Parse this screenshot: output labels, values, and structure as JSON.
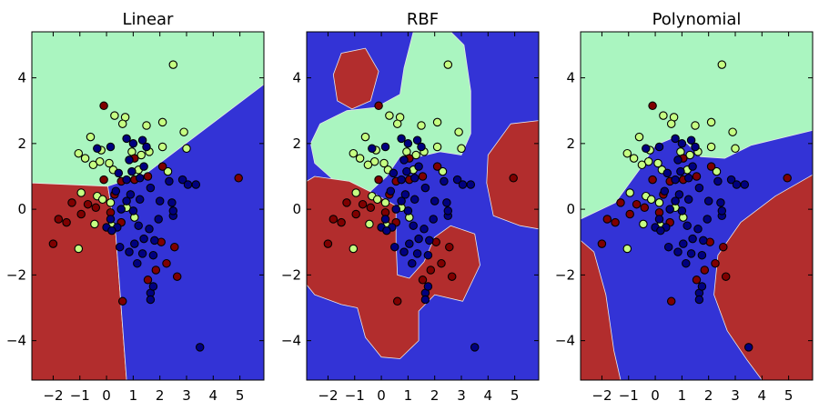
{
  "colors": {
    "class0": "#b22d2d",
    "class1": "#3333d6",
    "class2": "#aaf5c0",
    "pt0": "#7f0000",
    "pt1": "#00007f",
    "pt2": "#c6ff82",
    "boundary": "#e8e8e8"
  },
  "chart_data": [
    {
      "type": "scatter",
      "title": "Linear",
      "xlim": [
        -2.8,
        5.9
      ],
      "ylim": [
        -5.2,
        5.4
      ],
      "xticks": [
        -2,
        -1,
        0,
        1,
        2,
        3,
        4,
        5
      ],
      "yticks": [
        -4,
        -2,
        0,
        2,
        4
      ],
      "grid": false,
      "background": "class2",
      "regions": [
        {
          "class": "class0",
          "polygon": [
            [
              -2.8,
              0.8
            ],
            [
              0.05,
              0.7
            ],
            [
              0.35,
              -0.8
            ],
            [
              0.75,
              -5.2
            ],
            [
              -2.8,
              -5.2
            ]
          ]
        },
        {
          "class": "class1",
          "polygon": [
            [
              0.05,
              0.7
            ],
            [
              1.5,
              1.1
            ],
            [
              5.9,
              3.8
            ],
            [
              5.9,
              -5.2
            ],
            [
              0.75,
              -5.2
            ],
            [
              0.35,
              -0.8
            ]
          ]
        }
      ]
    },
    {
      "type": "scatter",
      "title": "RBF",
      "xlim": [
        -2.8,
        5.9
      ],
      "ylim": [
        -5.2,
        5.4
      ],
      "xticks": [
        -2,
        -1,
        0,
        1,
        2,
        3,
        4,
        5
      ],
      "yticks": [
        -4,
        -2,
        0,
        2,
        4
      ],
      "grid": false,
      "background": "class1",
      "regions": [
        {
          "class": "class2",
          "polygon": [
            [
              -0.2,
              3.1
            ],
            [
              -1.3,
              3.0
            ],
            [
              -2.3,
              2.6
            ],
            [
              -2.65,
              2.0
            ],
            [
              -2.5,
              1.4
            ],
            [
              -1.6,
              0.75
            ],
            [
              -0.4,
              0.55
            ],
            [
              0.2,
              1.0
            ],
            [
              0.7,
              1.6
            ],
            [
              1.4,
              1.6
            ],
            [
              2.2,
              1.75
            ],
            [
              3.0,
              1.65
            ],
            [
              3.35,
              2.3
            ],
            [
              3.35,
              3.6
            ],
            [
              3.1,
              5.0
            ],
            [
              2.6,
              5.4
            ],
            [
              1.2,
              5.4
            ],
            [
              0.85,
              4.3
            ],
            [
              0.7,
              3.5
            ]
          ]
        },
        {
          "class": "class0",
          "polygon": [
            [
              -1.8,
              4.1
            ],
            [
              -1.5,
              4.75
            ],
            [
              -0.6,
              4.9
            ],
            [
              -0.1,
              4.2
            ],
            [
              -0.4,
              3.3
            ],
            [
              -1.1,
              3.05
            ],
            [
              -1.65,
              3.3
            ]
          ]
        },
        {
          "class": "class0",
          "polygon": [
            [
              4.0,
              1.65
            ],
            [
              4.85,
              2.6
            ],
            [
              5.9,
              2.7
            ],
            [
              5.9,
              -0.6
            ],
            [
              5.2,
              -0.5
            ],
            [
              4.2,
              -0.2
            ],
            [
              3.95,
              0.8
            ]
          ]
        },
        {
          "class": "class0",
          "polygon": [
            [
              -2.8,
              0.85
            ],
            [
              -2.5,
              1.0
            ],
            [
              -1.2,
              0.85
            ],
            [
              -0.2,
              0.45
            ],
            [
              0.55,
              0.1
            ],
            [
              0.55,
              -1.0
            ],
            [
              0.6,
              -2.0
            ],
            [
              1.05,
              -2.1
            ],
            [
              1.6,
              -1.6
            ],
            [
              2.0,
              -0.85
            ],
            [
              2.6,
              -0.5
            ],
            [
              3.5,
              -0.75
            ],
            [
              3.7,
              -1.7
            ],
            [
              3.05,
              -2.8
            ],
            [
              2.0,
              -2.6
            ],
            [
              1.4,
              -3.1
            ],
            [
              1.4,
              -4.0
            ],
            [
              0.7,
              -4.55
            ],
            [
              0.0,
              -4.5
            ],
            [
              -0.6,
              -3.9
            ],
            [
              -0.9,
              -3.0
            ],
            [
              -1.5,
              -2.9
            ],
            [
              -2.5,
              -2.6
            ],
            [
              -2.8,
              -2.3
            ]
          ]
        }
      ]
    },
    {
      "type": "scatter",
      "title": "Polynomial",
      "xlim": [
        -2.8,
        5.9
      ],
      "ylim": [
        -5.2,
        5.4
      ],
      "xticks": [
        -2,
        -1,
        0,
        1,
        2,
        3,
        4,
        5
      ],
      "yticks": [
        -4,
        -2,
        0,
        2,
        4
      ],
      "grid": false,
      "background": "class1",
      "regions": [
        {
          "class": "class2",
          "polygon": [
            [
              -2.8,
              -0.3
            ],
            [
              -1.5,
              0.2
            ],
            [
              -0.6,
              1.2
            ],
            [
              0.0,
              1.95
            ],
            [
              0.6,
              2.15
            ],
            [
              1.2,
              2.0
            ],
            [
              1.7,
              1.6
            ],
            [
              2.6,
              1.55
            ],
            [
              3.6,
              1.95
            ],
            [
              5.9,
              2.4
            ],
            [
              5.9,
              5.4
            ],
            [
              -2.8,
              5.4
            ]
          ]
        },
        {
          "class": "class0",
          "polygon": [
            [
              -2.8,
              -0.95
            ],
            [
              -2.3,
              -1.3
            ],
            [
              -1.85,
              -2.6
            ],
            [
              -1.55,
              -4.3
            ],
            [
              -1.3,
              -5.2
            ],
            [
              -2.8,
              -5.2
            ]
          ]
        },
        {
          "class": "class0",
          "polygon": [
            [
              5.9,
              1.05
            ],
            [
              4.5,
              0.4
            ],
            [
              3.2,
              -0.4
            ],
            [
              2.35,
              -1.4
            ],
            [
              2.2,
              -2.6
            ],
            [
              2.7,
              -3.7
            ],
            [
              3.45,
              -4.6
            ],
            [
              4.0,
              -5.2
            ],
            [
              5.9,
              -5.2
            ]
          ]
        }
      ]
    }
  ],
  "points": [
    {
      "x": 2.5,
      "y": 4.4,
      "c": 2
    },
    {
      "x": 0.3,
      "y": 2.85,
      "c": 2
    },
    {
      "x": 0.7,
      "y": 2.8,
      "c": 2
    },
    {
      "x": 0.6,
      "y": 2.6,
      "c": 2
    },
    {
      "x": 1.5,
      "y": 2.55,
      "c": 2
    },
    {
      "x": 2.1,
      "y": 2.65,
      "c": 2
    },
    {
      "x": 2.9,
      "y": 2.35,
      "c": 2
    },
    {
      "x": -0.6,
      "y": 2.2,
      "c": 2
    },
    {
      "x": 3.0,
      "y": 1.85,
      "c": 2
    },
    {
      "x": 2.1,
      "y": 1.9,
      "c": 2
    },
    {
      "x": -0.2,
      "y": 1.8,
      "c": 2
    },
    {
      "x": 1.6,
      "y": 1.75,
      "c": 2
    },
    {
      "x": 0.95,
      "y": 1.75,
      "c": 2
    },
    {
      "x": -1.05,
      "y": 1.7,
      "c": 2
    },
    {
      "x": -0.8,
      "y": 1.55,
      "c": 2
    },
    {
      "x": 1.3,
      "y": 1.65,
      "c": 2
    },
    {
      "x": -0.25,
      "y": 1.45,
      "c": 2
    },
    {
      "x": 0.1,
      "y": 1.4,
      "c": 2
    },
    {
      "x": -0.5,
      "y": 1.35,
      "c": 2
    },
    {
      "x": 0.25,
      "y": 1.2,
      "c": 2
    },
    {
      "x": 2.3,
      "y": 1.15,
      "c": 2
    },
    {
      "x": 1.2,
      "y": 1.2,
      "c": 2
    },
    {
      "x": -0.95,
      "y": 0.5,
      "c": 2
    },
    {
      "x": -0.35,
      "y": 0.4,
      "c": 2
    },
    {
      "x": -0.15,
      "y": 0.3,
      "c": 2
    },
    {
      "x": 0.15,
      "y": 0.2,
      "c": 2
    },
    {
      "x": 0.75,
      "y": 0.05,
      "c": 2
    },
    {
      "x": 1.05,
      "y": -0.25,
      "c": 2
    },
    {
      "x": -0.45,
      "y": -0.45,
      "c": 2
    },
    {
      "x": 0.2,
      "y": -0.5,
      "c": 2
    },
    {
      "x": -1.05,
      "y": -1.2,
      "c": 2
    },
    {
      "x": -0.1,
      "y": 3.15,
      "c": 0
    },
    {
      "x": 1.05,
      "y": 1.55,
      "c": 0
    },
    {
      "x": 2.1,
      "y": 1.3,
      "c": 0
    },
    {
      "x": 1.55,
      "y": 1.0,
      "c": 0
    },
    {
      "x": 0.55,
      "y": 0.85,
      "c": 0
    },
    {
      "x": 1.05,
      "y": 0.9,
      "c": 0
    },
    {
      "x": -0.1,
      "y": 0.9,
      "c": 0
    },
    {
      "x": -1.3,
      "y": 0.2,
      "c": 0
    },
    {
      "x": -0.7,
      "y": 0.15,
      "c": 0
    },
    {
      "x": -0.4,
      "y": 0.05,
      "c": 0
    },
    {
      "x": 0.3,
      "y": 0.45,
      "c": 0
    },
    {
      "x": 4.95,
      "y": 0.95,
      "c": 0
    },
    {
      "x": -1.8,
      "y": -0.3,
      "c": 0
    },
    {
      "x": -1.5,
      "y": -0.4,
      "c": 0
    },
    {
      "x": -0.95,
      "y": -0.15,
      "c": 0
    },
    {
      "x": 0.15,
      "y": -0.1,
      "c": 0
    },
    {
      "x": 0.55,
      "y": -0.4,
      "c": 0
    },
    {
      "x": -2.0,
      "y": -1.05,
      "c": 0
    },
    {
      "x": 2.05,
      "y": -1.0,
      "c": 0
    },
    {
      "x": 2.55,
      "y": -1.15,
      "c": 0
    },
    {
      "x": 2.25,
      "y": -1.65,
      "c": 0
    },
    {
      "x": 1.85,
      "y": -1.85,
      "c": 0
    },
    {
      "x": 2.65,
      "y": -2.05,
      "c": 0
    },
    {
      "x": 1.55,
      "y": -2.15,
      "c": 0
    },
    {
      "x": 0.6,
      "y": -2.8,
      "c": 0
    },
    {
      "x": 0.75,
      "y": 2.15,
      "c": 1
    },
    {
      "x": 1.35,
      "y": 2.1,
      "c": 1
    },
    {
      "x": 0.15,
      "y": 1.9,
      "c": 1
    },
    {
      "x": -0.35,
      "y": 1.85,
      "c": 1
    },
    {
      "x": 1.5,
      "y": 1.9,
      "c": 1
    },
    {
      "x": 0.85,
      "y": 1.5,
      "c": 1
    },
    {
      "x": 1.4,
      "y": 1.3,
      "c": 1
    },
    {
      "x": 0.45,
      "y": 1.1,
      "c": 1
    },
    {
      "x": 0.95,
      "y": 1.15,
      "c": 1
    },
    {
      "x": 0.75,
      "y": 0.9,
      "c": 1
    },
    {
      "x": 1.25,
      "y": 0.95,
      "c": 1
    },
    {
      "x": 1.65,
      "y": 0.65,
      "c": 1
    },
    {
      "x": 2.35,
      "y": 0.85,
      "c": 1
    },
    {
      "x": 2.85,
      "y": 0.9,
      "c": 1
    },
    {
      "x": 3.05,
      "y": 0.75,
      "c": 1
    },
    {
      "x": 3.35,
      "y": 0.75,
      "c": 1
    },
    {
      "x": 0.35,
      "y": 0.55,
      "c": 1
    },
    {
      "x": 0.9,
      "y": 0.45,
      "c": 1
    },
    {
      "x": 0.75,
      "y": 0.25,
      "c": 1
    },
    {
      "x": 1.25,
      "y": 0.3,
      "c": 1
    },
    {
      "x": 2.0,
      "y": 0.25,
      "c": 1
    },
    {
      "x": 2.45,
      "y": 0.2,
      "c": 1
    },
    {
      "x": 0.55,
      "y": 0.0,
      "c": 1
    },
    {
      "x": 1.0,
      "y": -0.05,
      "c": 1
    },
    {
      "x": 1.95,
      "y": -0.3,
      "c": 1
    },
    {
      "x": 0.15,
      "y": -0.3,
      "c": 1
    },
    {
      "x": 2.5,
      "y": -0.2,
      "c": 1
    },
    {
      "x": 0.4,
      "y": -0.55,
      "c": 1
    },
    {
      "x": 1.2,
      "y": -0.5,
      "c": 1
    },
    {
      "x": 1.6,
      "y": -0.6,
      "c": 1
    },
    {
      "x": 0.0,
      "y": -0.55,
      "c": 1
    },
    {
      "x": 0.2,
      "y": -0.65,
      "c": 1
    },
    {
      "x": 1.4,
      "y": -0.9,
      "c": 1
    },
    {
      "x": 1.05,
      "y": -1.05,
      "c": 1
    },
    {
      "x": 1.8,
      "y": -0.95,
      "c": 1
    },
    {
      "x": 0.5,
      "y": -1.15,
      "c": 1
    },
    {
      "x": 0.85,
      "y": -1.3,
      "c": 1
    },
    {
      "x": 1.35,
      "y": -1.35,
      "c": 1
    },
    {
      "x": 1.75,
      "y": -1.4,
      "c": 1
    },
    {
      "x": 1.15,
      "y": -1.65,
      "c": 1
    },
    {
      "x": 1.65,
      "y": -2.55,
      "c": 1
    },
    {
      "x": 1.65,
      "y": -2.75,
      "c": 1
    },
    {
      "x": 1.75,
      "y": -2.35,
      "c": 1
    },
    {
      "x": 3.5,
      "y": -4.2,
      "c": 1
    },
    {
      "x": 2.5,
      "y": -0.05,
      "c": 1
    },
    {
      "x": 1.0,
      "y": 2.0,
      "c": 1
    }
  ]
}
